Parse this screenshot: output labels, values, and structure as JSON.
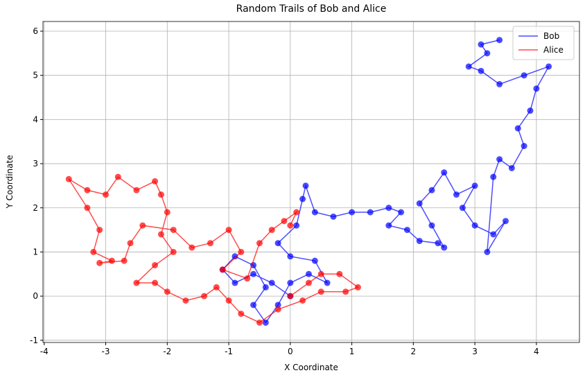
{
  "chart_data": {
    "type": "scatter-line",
    "title": "Random Trails of Bob and Alice",
    "x_label": "X Coordinate",
    "y_label": "Y Coordinate",
    "xlim": [
      -4.02,
      4.7
    ],
    "ylim": [
      -1.05,
      6.22
    ],
    "xticks": [
      -4,
      -3,
      -2,
      -1,
      0,
      1,
      2,
      3,
      4
    ],
    "yticks": [
      -1,
      0,
      1,
      2,
      3,
      4,
      5,
      6
    ],
    "grid": true,
    "legend": "upper right",
    "series": [
      {
        "name": "Bob",
        "color": "#0000ff",
        "x": [
          0,
          -0.3,
          -0.6,
          -0.9,
          -1.1,
          -0.9,
          -0.6,
          -0.4,
          -0.6,
          -0.4,
          -0.2,
          0,
          0.3,
          0.6,
          0.4,
          0,
          -0.2,
          0.1,
          0.2,
          0.25,
          0.4,
          0.7,
          1.0,
          1.3,
          1.6,
          1.8,
          1.6,
          1.9,
          2.1,
          2.4,
          2.5,
          2.3,
          2.1,
          2.3,
          2.5,
          2.7,
          3.0,
          2.8,
          3.0,
          3.3,
          3.5,
          3.2,
          3.3,
          3.4,
          3.6,
          3.8,
          3.7,
          3.9,
          4.0,
          4.2,
          3.8,
          3.4,
          3.1,
          2.9,
          3.2,
          3.1,
          3.4
        ],
        "y": [
          0,
          0.3,
          0.5,
          0.3,
          0.6,
          0.9,
          0.7,
          0.2,
          -0.2,
          -0.6,
          -0.2,
          0.3,
          0.5,
          0.3,
          0.8,
          0.9,
          1.2,
          1.6,
          2.2,
          2.5,
          1.9,
          1.8,
          1.9,
          1.9,
          2.0,
          1.9,
          1.6,
          1.5,
          1.25,
          1.2,
          1.1,
          1.6,
          2.1,
          2.4,
          2.8,
          2.3,
          2.5,
          2.0,
          1.6,
          1.4,
          1.7,
          1.0,
          2.7,
          3.1,
          2.9,
          3.4,
          3.8,
          4.2,
          4.7,
          5.2,
          5.0,
          4.8,
          5.1,
          5.2,
          5.5,
          5.7,
          5.8
        ]
      },
      {
        "name": "Alice",
        "color": "#ff0000",
        "x": [
          0,
          0.3,
          0.5,
          0.8,
          1.1,
          0.9,
          0.5,
          0.2,
          -0.2,
          -0.5,
          -0.8,
          -1.0,
          -1.2,
          -1.4,
          -1.7,
          -2.0,
          -2.2,
          -2.5,
          -2.2,
          -1.9,
          -2.1,
          -2.0,
          -2.1,
          -2.2,
          -2.5,
          -2.8,
          -3.0,
          -3.3,
          -3.6,
          -3.3,
          -3.1,
          -3.2,
          -2.9,
          -3.1,
          -2.7,
          -2.6,
          -2.4,
          -1.9,
          -1.6,
          -1.3,
          -1.0,
          -0.8,
          -1.1,
          -0.7,
          -0.5,
          -0.3,
          -0.1,
          0.1,
          0.0
        ],
        "y": [
          0,
          0.3,
          0.5,
          0.5,
          0.2,
          0.1,
          0.1,
          -0.1,
          -0.3,
          -0.6,
          -0.4,
          -0.1,
          0.2,
          0.0,
          -0.1,
          0.1,
          0.3,
          0.3,
          0.7,
          1.0,
          1.4,
          1.9,
          2.3,
          2.6,
          2.4,
          2.7,
          2.3,
          2.4,
          2.65,
          2.0,
          1.5,
          1.0,
          0.8,
          0.75,
          0.8,
          1.2,
          1.6,
          1.5,
          1.1,
          1.2,
          1.5,
          1.0,
          0.6,
          0.4,
          1.2,
          1.5,
          1.7,
          1.9,
          1.6
        ]
      }
    ]
  }
}
